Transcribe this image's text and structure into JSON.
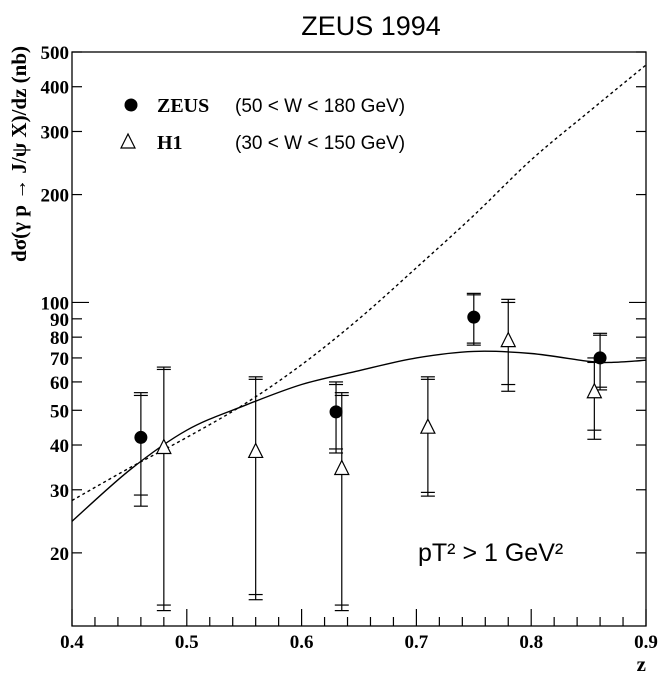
{
  "chart_data": {
    "type": "scatter",
    "title": "ZEUS 1994",
    "xlabel": "z",
    "ylabel": "dσ(γ p → J/ψ X)/dz  (nb)",
    "xlim": [
      0.4,
      0.9
    ],
    "ylim": [
      12.5,
      500
    ],
    "yscale": "log",
    "x_ticks": [
      0.4,
      0.5,
      0.6,
      0.7,
      0.8,
      0.9
    ],
    "x_tick_labels": [
      "0.4",
      "0.5",
      "0.6",
      "0.7",
      "0.8",
      "0.9"
    ],
    "y_labeled_ticks": [
      20,
      30,
      40,
      50,
      60,
      70,
      80,
      90,
      100,
      200,
      300,
      400,
      500
    ],
    "y_tick_labels": [
      "20",
      "30",
      "40",
      "50",
      "60",
      "70",
      "80",
      "90",
      "100",
      "200",
      "300",
      "400",
      "500"
    ],
    "annotation": "pT² > 1  GeV²",
    "legend_position": "top-left",
    "series": [
      {
        "name": "ZEUS",
        "legend_label": "ZEUS",
        "legend_range": "(50 < W < 180 GeV)",
        "marker": "filled-circle",
        "points": [
          {
            "x": 0.46,
            "y": 42,
            "stat_low": 29,
            "stat_high": 55,
            "tot_low": 27,
            "tot_high": 56
          },
          {
            "x": 0.63,
            "y": 49.5,
            "stat_low": 39,
            "stat_high": 59,
            "tot_low": 38,
            "tot_high": 60
          },
          {
            "x": 0.75,
            "y": 91,
            "stat_low": 77,
            "stat_high": 105,
            "tot_low": 76,
            "tot_high": 106
          },
          {
            "x": 0.86,
            "y": 70,
            "stat_low": 58,
            "stat_high": 81,
            "tot_low": 57,
            "tot_high": 82
          }
        ]
      },
      {
        "name": "H1",
        "legend_label": "H1",
        "legend_range": "(30 < W < 150 GeV)",
        "marker": "open-triangle",
        "points": [
          {
            "x": 0.48,
            "y": 39.5,
            "stat_low": 14.3,
            "stat_high": 65,
            "tot_low": 13.8,
            "tot_high": 66
          },
          {
            "x": 0.56,
            "y": 38.5,
            "stat_low": 15.3,
            "stat_high": 61,
            "tot_low": 14.8,
            "tot_high": 62
          },
          {
            "x": 0.635,
            "y": 34.5,
            "stat_low": 14.3,
            "stat_high": 55,
            "tot_low": 13.8,
            "tot_high": 56
          },
          {
            "x": 0.71,
            "y": 45,
            "stat_low": 29.5,
            "stat_high": 61,
            "tot_low": 28.8,
            "tot_high": 62
          },
          {
            "x": 0.78,
            "y": 78.5,
            "stat_low": 59,
            "stat_high": 100,
            "tot_low": 56.5,
            "tot_high": 102
          },
          {
            "x": 0.855,
            "y": 56.5,
            "stat_low": 44,
            "stat_high": 68,
            "tot_low": 41.5,
            "tot_high": 70
          }
        ]
      }
    ],
    "curves": [
      {
        "style": "solid",
        "points": [
          [
            0.4,
            24.5
          ],
          [
            0.45,
            34
          ],
          [
            0.5,
            44
          ],
          [
            0.55,
            51.5
          ],
          [
            0.6,
            59
          ],
          [
            0.65,
            64.5
          ],
          [
            0.7,
            70
          ],
          [
            0.75,
            73
          ],
          [
            0.8,
            72
          ],
          [
            0.85,
            68.5
          ],
          [
            0.87,
            68
          ],
          [
            0.9,
            69
          ]
        ]
      },
      {
        "style": "dashed",
        "points": [
          [
            0.4,
            28
          ],
          [
            0.45,
            34.5
          ],
          [
            0.5,
            42
          ],
          [
            0.55,
            52
          ],
          [
            0.6,
            67
          ],
          [
            0.65,
            90
          ],
          [
            0.7,
            125
          ],
          [
            0.75,
            175
          ],
          [
            0.8,
            250
          ],
          [
            0.85,
            340
          ],
          [
            0.9,
            460
          ]
        ]
      }
    ]
  }
}
